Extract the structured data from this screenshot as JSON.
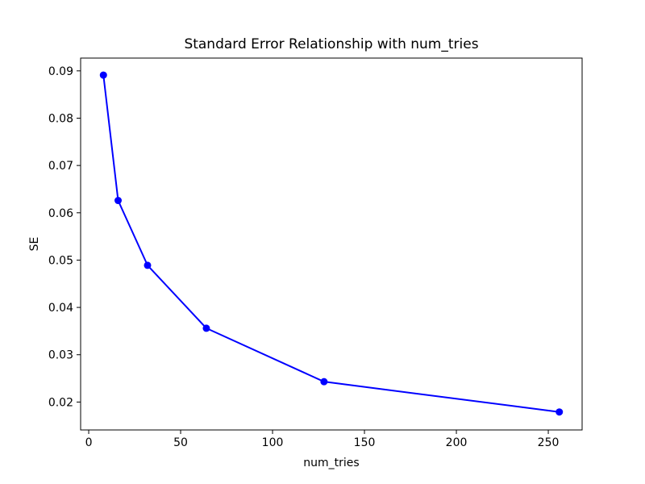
{
  "figure": {
    "background": "#ffffff"
  },
  "chart_data": {
    "type": "line",
    "title": "Standard Error Relationship with num_tries",
    "xlabel": "num_tries",
    "ylabel": "SE",
    "series": [
      {
        "name": "SE",
        "color": "#0000ff",
        "marker": "circle",
        "x": [
          8,
          16,
          32,
          64,
          128,
          256
        ],
        "y": [
          0.0891,
          0.0626,
          0.0489,
          0.0356,
          0.0243,
          0.0179
        ]
      }
    ],
    "xticks": [
      0,
      50,
      100,
      150,
      200,
      250
    ],
    "yticks": [
      0.02,
      0.03,
      0.04,
      0.05,
      0.06,
      0.07,
      0.08,
      0.09
    ],
    "xlim": [
      -4.4,
      268.4
    ],
    "ylim": [
      0.0141,
      0.0927
    ],
    "grid": false,
    "legend": false,
    "axis_color": "#000000",
    "tick_label_format_y_decimals": 2
  }
}
